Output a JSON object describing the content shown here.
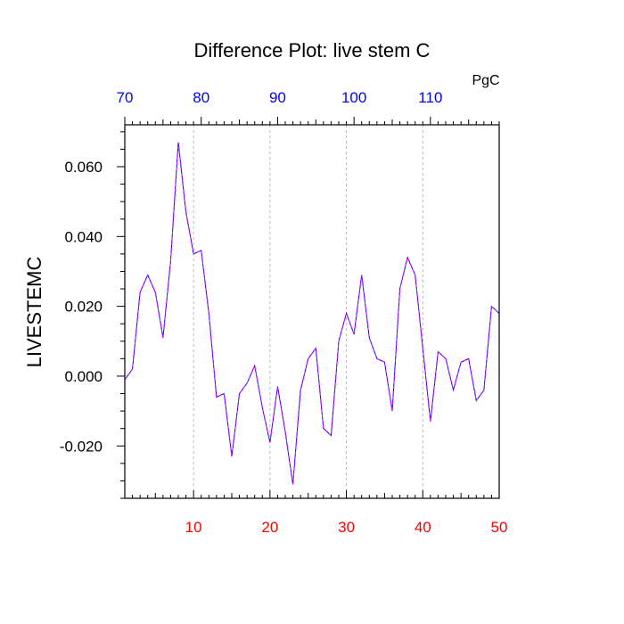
{
  "chart_data": {
    "type": "line",
    "title": "Difference Plot: live stem C",
    "ylabel": "LIVESTEMC",
    "top_axis_unit": "PgC",
    "xlim": [
      1,
      50
    ],
    "ylim": [
      -0.035,
      0.072
    ],
    "grid": "vertical dashed at major x ticks",
    "y_ticks": [
      "0.060",
      "0.040",
      "0.020",
      "0.000",
      "-0.020"
    ],
    "y_tick_values": [
      0.06,
      0.04,
      0.02,
      0.0,
      -0.02
    ],
    "bottom_ticks": [
      "10",
      "20",
      "30",
      "40",
      "50"
    ],
    "bottom_tick_values": [
      10,
      20,
      30,
      40,
      50
    ],
    "top_ticks": [
      "70",
      "80",
      "90",
      "100",
      "110"
    ],
    "top_tick_values": [
      70,
      80,
      90,
      100,
      110
    ],
    "top_axis_range": [
      70,
      119
    ],
    "colors": {
      "bottom_axis": "#ff0000",
      "top_axis": "#0000ff",
      "line_primary": "#0000ff",
      "line_dash": "#ff00ff",
      "grid": "#aaaaaa"
    },
    "series": [
      {
        "x": [
          1,
          2,
          3,
          4,
          5,
          6,
          7,
          8,
          9,
          10,
          11,
          12,
          13,
          14,
          15,
          16,
          17,
          18,
          19,
          20,
          21,
          22,
          23,
          24,
          25,
          26,
          27,
          28,
          29,
          30,
          31,
          32,
          33,
          34,
          35,
          36,
          37,
          38,
          39,
          40,
          41,
          42,
          43,
          44,
          45,
          46,
          47,
          48,
          49,
          50
        ],
        "values": [
          -0.001,
          0.002,
          0.024,
          0.029,
          0.024,
          0.011,
          0.033,
          0.067,
          0.047,
          0.035,
          0.036,
          0.018,
          -0.006,
          -0.005,
          -0.023,
          -0.005,
          -0.002,
          0.003,
          -0.009,
          -0.019,
          -0.003,
          -0.016,
          -0.031,
          -0.004,
          0.005,
          0.008,
          -0.015,
          -0.017,
          0.01,
          0.018,
          0.012,
          0.029,
          0.011,
          0.005,
          0.004,
          -0.01,
          0.025,
          0.034,
          0.029,
          0.008,
          -0.013,
          0.007,
          0.005,
          -0.004,
          0.004,
          0.005,
          -0.007,
          -0.004,
          0.02,
          0.018
        ]
      }
    ]
  }
}
